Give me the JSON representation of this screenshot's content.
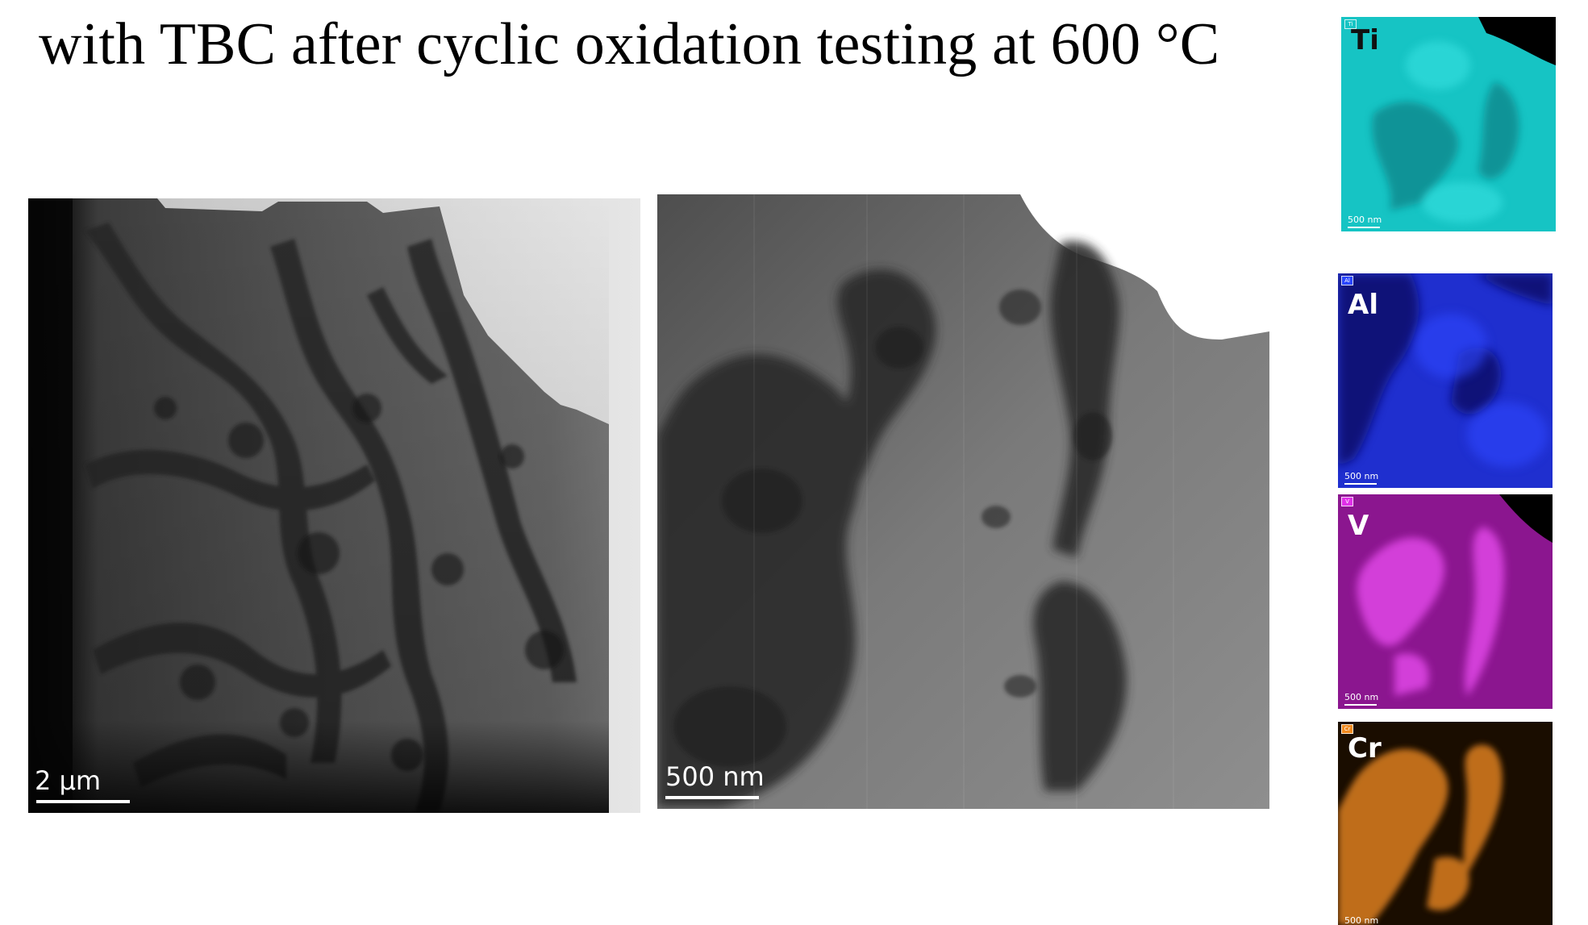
{
  "title": {
    "cut_line": "with TBC after cyclic oxidation testing at 600 °C",
    "line": "with TBC after cyclic oxidation testing at 600 °C"
  },
  "micrographs": [
    {
      "scale_label": "2 μm"
    },
    {
      "scale_label": "500 nm"
    }
  ],
  "eds_maps": [
    {
      "element": "Ti",
      "scale_label": "500 nm",
      "color": "#16c4c4",
      "chip_color": "#16c4c4",
      "label_color": "#111111"
    },
    {
      "element": "Al",
      "scale_label": "500 nm",
      "color": "#1f2fcf",
      "chip_color": "#2a46ff",
      "label_color": "#ffffff"
    },
    {
      "element": "V",
      "scale_label": "500 nm",
      "color": "#b21eb8",
      "chip_color": "#e030e8",
      "label_color": "#ffffff"
    },
    {
      "element": "Cr",
      "scale_label": "500 nm",
      "color": "#c8731d",
      "chip_color": "#f08a20",
      "label_color": "#ffffff"
    }
  ]
}
